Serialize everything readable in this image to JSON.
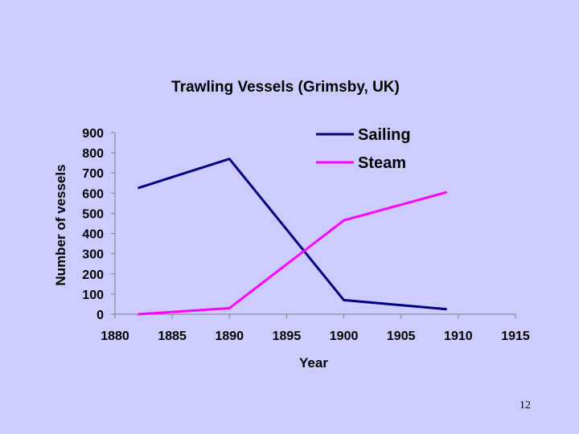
{
  "chart_data": {
    "type": "line",
    "title": "Trawling Vessels (Grimsby, UK)",
    "xlabel": "Year",
    "ylabel": "Number of vessels",
    "xlim": [
      1880,
      1915
    ],
    "ylim": [
      0,
      900
    ],
    "x_ticks": [
      1880,
      1885,
      1890,
      1895,
      1900,
      1905,
      1910,
      1915
    ],
    "y_ticks": [
      0,
      100,
      200,
      300,
      400,
      500,
      600,
      700,
      800,
      900
    ],
    "legend_position": "top-right",
    "grid": false,
    "series": [
      {
        "name": "Sailing",
        "color": "#000080",
        "x": [
          1882,
          1890,
          1900,
          1909
        ],
        "y": [
          625,
          770,
          70,
          25
        ]
      },
      {
        "name": "Steam",
        "color": "#ff00ff",
        "x": [
          1882,
          1890,
          1900,
          1909
        ],
        "y": [
          0,
          30,
          465,
          605
        ]
      }
    ]
  },
  "page_number": "12"
}
